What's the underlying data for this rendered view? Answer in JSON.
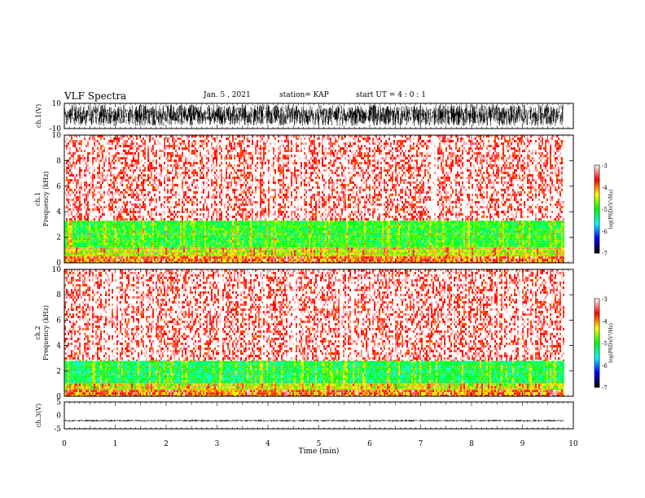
{
  "header": {
    "title": "VLF Spectra",
    "date": "Jan. 5 , 2021",
    "station": "station= KAP",
    "start": "start UT = 4 : 0 : 1"
  },
  "chart_data": [
    {
      "type": "line",
      "panel": "ch1-waveform",
      "ylabel": "ch.1(V)",
      "ylim": [
        -10,
        10
      ],
      "yticks": [
        "10",
        "-10"
      ],
      "xlim": [
        0,
        10
      ],
      "color": "#000000",
      "amplitude_range": [
        -8,
        9
      ],
      "data_end": 9.8
    },
    {
      "type": "heatmap",
      "panel": "ch1-spectrogram",
      "ylabel_top": "ch.1",
      "ylabel": "Frequency (kHz)",
      "ylim": [
        0,
        10
      ],
      "yticks": [
        "0",
        "2",
        "4",
        "6",
        "8",
        "10"
      ],
      "xlim": [
        0,
        10
      ],
      "data_end": 9.8,
      "bands": [
        {
          "from": 0.0,
          "to": 0.5,
          "level": "-4"
        },
        {
          "from": 0.5,
          "to": 1.2,
          "level": "-4.5"
        },
        {
          "from": 1.2,
          "to": 3.3,
          "level": "-5"
        },
        {
          "from": 3.3,
          "to": 10.0,
          "level": "-3.5"
        }
      ]
    },
    {
      "type": "heatmap",
      "panel": "ch2-spectrogram",
      "ylabel_top": "ch.2",
      "ylabel": "Frequency (kHz)",
      "ylim": [
        0,
        10
      ],
      "yticks": [
        "0",
        "2",
        "4",
        "6",
        "8",
        "10"
      ],
      "xlim": [
        0,
        10
      ],
      "data_end": 9.8,
      "bands": [
        {
          "from": 0.0,
          "to": 0.5,
          "level": "-4"
        },
        {
          "from": 0.5,
          "to": 1.0,
          "level": "-4.5"
        },
        {
          "from": 1.0,
          "to": 2.8,
          "level": "-5.2"
        },
        {
          "from": 2.8,
          "to": 10.0,
          "level": "-3.5"
        }
      ]
    },
    {
      "type": "line",
      "panel": "ch3-waveform",
      "ylabel": "ch.3(V)",
      "ylim": [
        -5,
        5
      ],
      "yticks": [
        "5",
        "0",
        "-5"
      ],
      "xlim": [
        0,
        10
      ],
      "color": "#000000",
      "amplitude_range": [
        -2.3,
        -1.6
      ],
      "data_end": 9.8
    }
  ],
  "x_axis": {
    "label": "Time (min)",
    "ticks": [
      "0",
      "1",
      "2",
      "3",
      "4",
      "5",
      "6",
      "7",
      "8",
      "9",
      "10"
    ]
  },
  "colorbars": [
    {
      "label": "log(PSD)(V²/Hz)",
      "ticks": [
        "-3",
        "-4",
        "-5",
        "-6",
        "-7"
      ],
      "range": [
        -7,
        -3
      ],
      "colors": [
        "#000000",
        "#0000ff",
        "#00ffff",
        "#00ff00",
        "#ffff00",
        "#ff0000",
        "#ffffff"
      ]
    },
    {
      "label": "log(PSD)(V²/Hz)",
      "ticks": [
        "-3",
        "-4",
        "-5",
        "-6",
        "-7"
      ],
      "range": [
        -7,
        -3
      ],
      "colors": [
        "#000000",
        "#0000ff",
        "#00ffff",
        "#00ff00",
        "#ffff00",
        "#ff0000",
        "#ffffff"
      ]
    }
  ]
}
